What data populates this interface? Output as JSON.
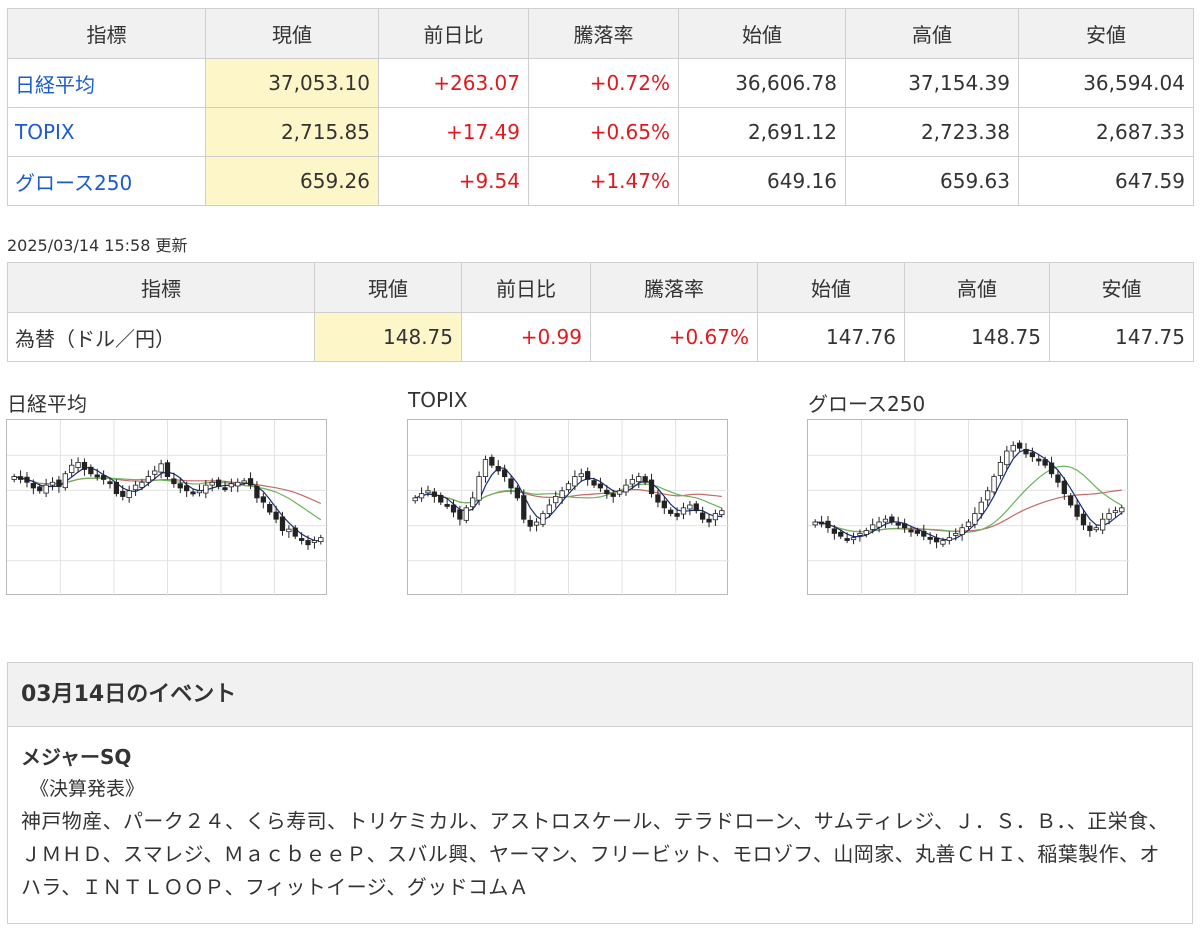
{
  "index_table": {
    "headers": [
      "指標",
      "現値",
      "前日比",
      "騰落率",
      "始値",
      "高値",
      "安値"
    ],
    "rows": [
      {
        "name": "日経平均",
        "current": "37,053.10",
        "change": "+263.07",
        "rate": "+0.72%",
        "open": "36,606.78",
        "high": "37,154.39",
        "low": "36,594.04"
      },
      {
        "name": "TOPIX",
        "current": "2,715.85",
        "change": "+17.49",
        "rate": "+0.65%",
        "open": "2,691.12",
        "high": "2,723.38",
        "low": "2,687.33"
      },
      {
        "name": "グロース250",
        "current": "659.26",
        "change": "+9.54",
        "rate": "+1.47%",
        "open": "649.16",
        "high": "659.63",
        "low": "647.59"
      }
    ]
  },
  "updated": "2025/03/14 15:58 更新",
  "fx_table": {
    "headers": [
      "指標",
      "現値",
      "前日比",
      "騰落率",
      "始値",
      "高値",
      "安値"
    ],
    "rows": [
      {
        "name": "為替（ドル／円）",
        "current": "148.75",
        "change": "+0.99",
        "rate": "+0.67%",
        "open": "147.76",
        "high": "148.75",
        "low": "147.75"
      }
    ]
  },
  "colors": {
    "up": "#e0191f",
    "link": "#1a5ccf",
    "highlight": "#fdf6c8",
    "ma_short": "#1b2f7a",
    "ma_mid": "#6bb35a",
    "ma_long": "#c46a6a"
  },
  "chart_data": [
    {
      "type": "candlestick",
      "title": "日経平均",
      "closes": [
        0.7,
        0.68,
        0.66,
        0.62,
        0.6,
        0.64,
        0.66,
        0.63,
        0.72,
        0.78,
        0.8,
        0.75,
        0.72,
        0.7,
        0.68,
        0.66,
        0.58,
        0.56,
        0.6,
        0.64,
        0.66,
        0.7,
        0.74,
        0.79,
        0.7,
        0.65,
        0.62,
        0.6,
        0.58,
        0.6,
        0.64,
        0.66,
        0.63,
        0.62,
        0.65,
        0.66,
        0.67,
        0.64,
        0.55,
        0.52,
        0.45,
        0.4,
        0.32,
        0.33,
        0.28,
        0.25,
        0.22,
        0.25,
        0.27
      ]
    },
    {
      "type": "candlestick",
      "title": "TOPIX",
      "closes": [
        0.55,
        0.58,
        0.6,
        0.56,
        0.52,
        0.5,
        0.45,
        0.4,
        0.48,
        0.55,
        0.7,
        0.82,
        0.78,
        0.74,
        0.7,
        0.62,
        0.55,
        0.4,
        0.35,
        0.38,
        0.44,
        0.5,
        0.56,
        0.6,
        0.65,
        0.7,
        0.72,
        0.68,
        0.64,
        0.62,
        0.58,
        0.56,
        0.6,
        0.64,
        0.68,
        0.7,
        0.66,
        0.58,
        0.52,
        0.48,
        0.44,
        0.42,
        0.48,
        0.5,
        0.46,
        0.4,
        0.38,
        0.44,
        0.46
      ]
    },
    {
      "type": "candlestick",
      "title": "グロース250",
      "closes": [
        0.38,
        0.37,
        0.34,
        0.3,
        0.28,
        0.26,
        0.27,
        0.3,
        0.32,
        0.36,
        0.38,
        0.4,
        0.38,
        0.36,
        0.34,
        0.32,
        0.3,
        0.28,
        0.26,
        0.24,
        0.25,
        0.27,
        0.3,
        0.34,
        0.38,
        0.44,
        0.52,
        0.6,
        0.7,
        0.8,
        0.88,
        0.92,
        0.9,
        0.86,
        0.84,
        0.82,
        0.78,
        0.72,
        0.66,
        0.58,
        0.5,
        0.42,
        0.36,
        0.32,
        0.34,
        0.4,
        0.44,
        0.46,
        0.48
      ]
    }
  ],
  "events": {
    "title": "03月14日のイベント",
    "subtitle": "メジャーSQ",
    "category": "《決算発表》",
    "list": "神戸物産、パーク２４、くら寿司、トリケミカル、アストロスケール、テラドローン、サムティレジ、Ｊ．Ｓ．Ｂ．、正栄食、ＪＭＨＤ、スマレジ、ＭａｃｂｅｅＰ、スバル興、ヤーマン、フリービット、モロゾフ、山岡家、丸善ＣＨＩ、稲葉製作、オハラ、ＩＮＴＬＯＯＰ、フィットイージ、グッドコムＡ"
  }
}
